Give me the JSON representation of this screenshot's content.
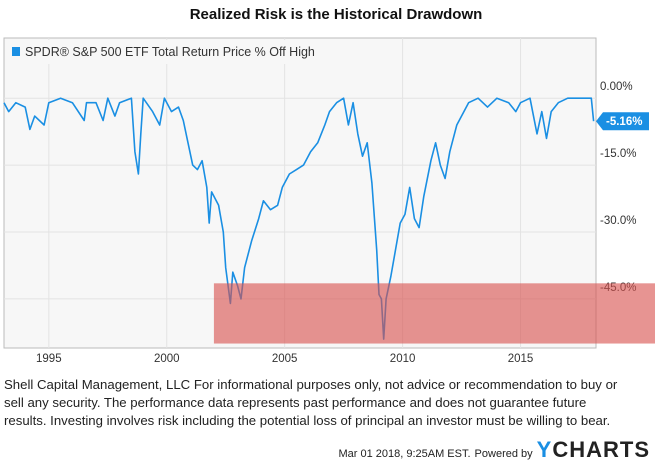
{
  "chart_data": {
    "type": "line",
    "title": "Realized Risk is the Historical Drawdown",
    "legend": {
      "label": "SPDR® S&P 500 ETF Total Return Price % Off High",
      "placement": "top-left"
    },
    "series_color": "#1a8fe3",
    "xlim": [
      1993.1,
      2018.2
    ],
    "ylim": [
      -56,
      13.5
    ],
    "x_ticks": [
      1995,
      2000,
      2005,
      2010,
      2015
    ],
    "x_tick_labels": [
      "1995",
      "2000",
      "2005",
      "2010",
      "2015"
    ],
    "y_ticks": [
      0,
      -15,
      -30,
      -45
    ],
    "y_tick_labels": [
      "0.00%",
      "-15.0%",
      "-30.0%",
      "-45.0%"
    ],
    "grid": true,
    "last_value": -5.16,
    "last_value_label": "-5.16%",
    "highlight_band": {
      "x_from": 2002.0,
      "y_from": -41.5,
      "y_to": -55,
      "color": "#d9534f",
      "note": "red shaded region"
    },
    "series": [
      {
        "name": "SPDR® S&P 500 ETF Total Return Price % Off High",
        "points": [
          [
            1993.1,
            -1
          ],
          [
            1993.3,
            -3
          ],
          [
            1993.6,
            -1
          ],
          [
            1994.0,
            -2
          ],
          [
            1994.2,
            -7
          ],
          [
            1994.4,
            -4
          ],
          [
            1994.8,
            -6
          ],
          [
            1995.0,
            -1
          ],
          [
            1995.5,
            0
          ],
          [
            1996.0,
            -1
          ],
          [
            1996.5,
            -5
          ],
          [
            1996.6,
            -1
          ],
          [
            1997.0,
            -1
          ],
          [
            1997.3,
            -5
          ],
          [
            1997.5,
            0
          ],
          [
            1997.8,
            -4
          ],
          [
            1998.0,
            -1
          ],
          [
            1998.5,
            0
          ],
          [
            1998.65,
            -12
          ],
          [
            1998.8,
            -17
          ],
          [
            1998.9,
            -8
          ],
          [
            1999.0,
            0
          ],
          [
            1999.4,
            -3
          ],
          [
            1999.7,
            -6
          ],
          [
            1999.9,
            0
          ],
          [
            2000.2,
            -3
          ],
          [
            2000.5,
            -2
          ],
          [
            2000.7,
            -5
          ],
          [
            2000.9,
            -10
          ],
          [
            2001.1,
            -15
          ],
          [
            2001.3,
            -16
          ],
          [
            2001.5,
            -14
          ],
          [
            2001.7,
            -20
          ],
          [
            2001.8,
            -28
          ],
          [
            2001.9,
            -21
          ],
          [
            2002.0,
            -22
          ],
          [
            2002.2,
            -24
          ],
          [
            2002.4,
            -30
          ],
          [
            2002.5,
            -38
          ],
          [
            2002.7,
            -46
          ],
          [
            2002.8,
            -39
          ],
          [
            2003.0,
            -42
          ],
          [
            2003.15,
            -45
          ],
          [
            2003.3,
            -38
          ],
          [
            2003.6,
            -32
          ],
          [
            2003.9,
            -27
          ],
          [
            2004.1,
            -23
          ],
          [
            2004.4,
            -25
          ],
          [
            2004.7,
            -24
          ],
          [
            2004.9,
            -20
          ],
          [
            2005.2,
            -17
          ],
          [
            2005.5,
            -16
          ],
          [
            2005.8,
            -15
          ],
          [
            2006.1,
            -12
          ],
          [
            2006.4,
            -10
          ],
          [
            2006.7,
            -6
          ],
          [
            2006.9,
            -3
          ],
          [
            2007.2,
            -1
          ],
          [
            2007.5,
            0
          ],
          [
            2007.7,
            -6
          ],
          [
            2007.9,
            -1
          ],
          [
            2008.1,
            -8
          ],
          [
            2008.3,
            -13
          ],
          [
            2008.5,
            -10
          ],
          [
            2008.7,
            -19
          ],
          [
            2008.9,
            -34
          ],
          [
            2009.0,
            -44
          ],
          [
            2009.1,
            -45
          ],
          [
            2009.2,
            -54
          ],
          [
            2009.3,
            -45
          ],
          [
            2009.5,
            -40
          ],
          [
            2009.7,
            -34
          ],
          [
            2009.9,
            -28
          ],
          [
            2010.1,
            -26
          ],
          [
            2010.3,
            -20
          ],
          [
            2010.5,
            -27
          ],
          [
            2010.7,
            -29
          ],
          [
            2010.9,
            -22
          ],
          [
            2011.2,
            -14
          ],
          [
            2011.4,
            -10
          ],
          [
            2011.6,
            -15
          ],
          [
            2011.8,
            -18
          ],
          [
            2012.0,
            -12
          ],
          [
            2012.3,
            -6
          ],
          [
            2012.6,
            -3
          ],
          [
            2012.8,
            -1
          ],
          [
            2013.2,
            0
          ],
          [
            2013.6,
            -2
          ],
          [
            2014.0,
            0
          ],
          [
            2014.5,
            -1
          ],
          [
            2014.8,
            -3
          ],
          [
            2015.0,
            -1
          ],
          [
            2015.4,
            0
          ],
          [
            2015.7,
            -8
          ],
          [
            2015.9,
            -3
          ],
          [
            2016.1,
            -9
          ],
          [
            2016.3,
            -3
          ],
          [
            2016.6,
            -1
          ],
          [
            2017.0,
            0
          ],
          [
            2017.5,
            0
          ],
          [
            2018.0,
            0
          ],
          [
            2018.1,
            -5.16
          ]
        ]
      }
    ]
  },
  "disclaimer_lines": [
    "Shell Capital Management, LLC For informational purposes only, not advice or recommendation to buy or",
    "sell any security. The performance data represents past performance and does not guarantee future",
    "results. Investing involves risk including the potential loss of principal an investor must be willing to bear."
  ],
  "footer": {
    "timestamp": "Mar 01 2018, 9:25AM EST.",
    "powered_by": "Powered by",
    "logo_y": "Y",
    "logo_rest": "CHARTS"
  }
}
